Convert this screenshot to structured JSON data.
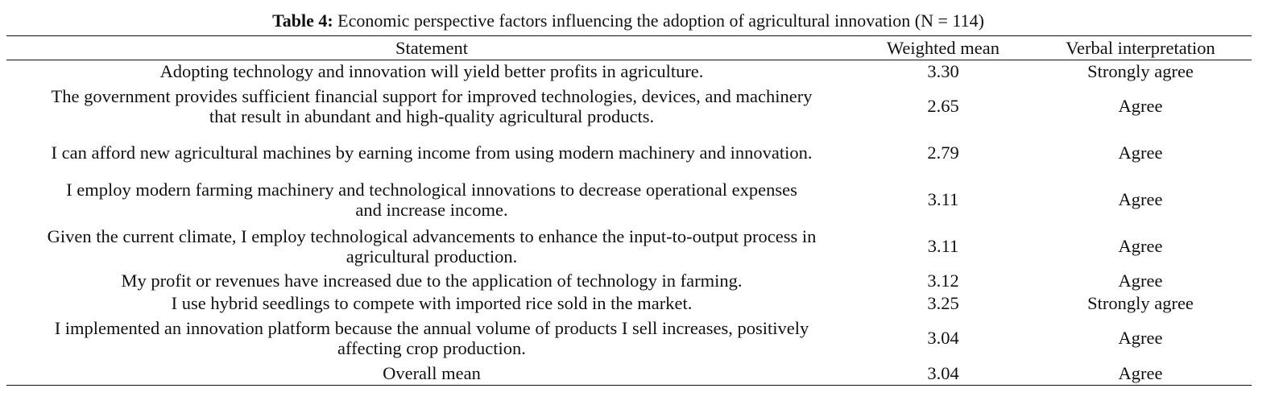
{
  "caption": {
    "label": "Table 4:",
    "text": " Economic perspective factors influencing the adoption of agricultural innovation (N = 114)"
  },
  "columns": [
    "Statement",
    "Weighted mean",
    "Verbal interpretation"
  ],
  "rows": [
    {
      "statement": "Adopting technology and innovation will yield better profits in agriculture.",
      "mean": "3.30",
      "interpretation": "Strongly agree"
    },
    {
      "statement": "The government provides sufficient financial support for improved technologies, devices, and machinery that result in abundant and high-quality agricultural products.",
      "mean": "2.65",
      "interpretation": "Agree"
    },
    {
      "statement": "I can afford new agricultural machines by earning income from using modern machinery and innovation.",
      "mean": "2.79",
      "interpretation": "Agree"
    },
    {
      "statement": "I employ modern farming machinery and technological innovations to decrease operational expenses and increase income.",
      "mean": "3.11",
      "interpretation": "Agree"
    },
    {
      "statement": "Given the current climate, I employ technological advancements to enhance the input-to-output process in agricultural production.",
      "mean": "3.11",
      "interpretation": "Agree"
    },
    {
      "statement": "My profit or revenues have increased due to the application of technology in farming.",
      "mean": "3.12",
      "interpretation": "Agree"
    },
    {
      "statement": "I use hybrid seedlings to compete with imported rice sold in the market.",
      "mean": "3.25",
      "interpretation": "Strongly agree"
    },
    {
      "statement": "I implemented an innovation platform because the annual volume of products I sell increases, positively affecting crop production.",
      "mean": "3.04",
      "interpretation": "Agree"
    },
    {
      "statement": "Overall mean",
      "mean": "3.04",
      "interpretation": "Agree"
    }
  ]
}
